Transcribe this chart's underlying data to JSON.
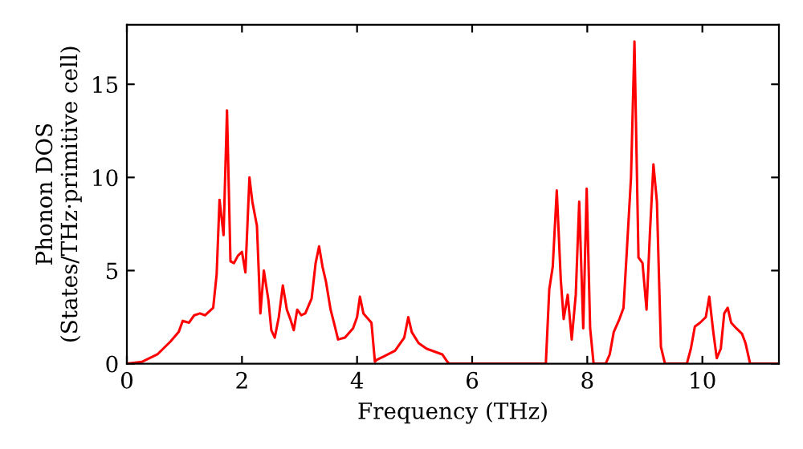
{
  "chart_data": {
    "type": "line",
    "xlabel": "Frequency (THz)",
    "ylabel": "Phonon DOS\n(States/THz·primitive cell)",
    "xlim": [
      0,
      11.33
    ],
    "ylim": [
      0,
      18.2
    ],
    "xticks": [
      0,
      2,
      4,
      6,
      8,
      10
    ],
    "yticks": [
      0,
      5,
      10,
      15
    ],
    "grid": false,
    "marker": "none",
    "line_style": "solid",
    "series": [
      {
        "color": "#ff0000",
        "x": [
          0,
          0.26,
          0.53,
          0.76,
          0.9,
          0.97,
          1.08,
          1.17,
          1.27,
          1.36,
          1.5,
          1.56,
          1.61,
          1.68,
          1.74,
          1.8,
          1.86,
          1.93,
          2.0,
          2.06,
          2.13,
          2.18,
          2.26,
          2.32,
          2.38,
          2.46,
          2.51,
          2.57,
          2.64,
          2.71,
          2.78,
          2.84,
          2.9,
          2.96,
          3.03,
          3.1,
          3.21,
          3.28,
          3.34,
          3.4,
          3.46,
          3.54,
          3.59,
          3.67,
          3.79,
          3.93,
          4.0,
          4.05,
          4.11,
          4.25,
          4.31,
          4.34,
          4.47,
          4.66,
          4.82,
          4.89,
          4.95,
          5.07,
          5.21,
          5.48,
          5.57,
          5.6,
          7.28,
          7.34,
          7.4,
          7.47,
          7.54,
          7.59,
          7.66,
          7.73,
          7.8,
          7.86,
          7.93,
          7.99,
          8.05,
          8.11,
          8.32,
          8.39,
          8.46,
          8.56,
          8.63,
          8.69,
          8.76,
          8.82,
          8.89,
          8.96,
          9.03,
          9.09,
          9.15,
          9.21,
          9.28,
          9.35,
          9.73,
          9.8,
          9.87,
          9.96,
          10.06,
          10.12,
          10.19,
          10.25,
          10.32,
          10.38,
          10.44,
          10.5,
          10.59,
          10.69,
          10.75,
          10.83,
          11.33
        ],
        "values": [
          0,
          0.1,
          0.5,
          1.2,
          1.7,
          2.3,
          2.2,
          2.6,
          2.7,
          2.6,
          3.0,
          4.8,
          8.8,
          6.9,
          13.6,
          5.5,
          5.4,
          5.8,
          6.0,
          4.9,
          10.0,
          8.7,
          7.4,
          2.7,
          5.0,
          3.4,
          1.8,
          1.4,
          2.5,
          4.2,
          2.9,
          2.4,
          1.8,
          2.9,
          2.6,
          2.7,
          3.5,
          5.4,
          6.3,
          5.2,
          4.4,
          2.9,
          2.3,
          1.3,
          1.4,
          1.9,
          2.5,
          3.6,
          2.7,
          2.2,
          0.1,
          0.2,
          0.4,
          0.7,
          1.4,
          2.5,
          1.7,
          1.1,
          0.8,
          0.5,
          0.1,
          0,
          0,
          4.0,
          5.2,
          9.3,
          4.5,
          2.4,
          3.7,
          1.3,
          3.7,
          8.7,
          1.9,
          9.4,
          1.9,
          0,
          0,
          0.5,
          1.7,
          2.4,
          3.0,
          6.2,
          10.0,
          17.3,
          5.7,
          5.4,
          2.9,
          7.1,
          10.7,
          8.7,
          0.9,
          0,
          0,
          0.8,
          2.0,
          2.2,
          2.5,
          3.6,
          1.7,
          0.3,
          0.8,
          2.7,
          3.0,
          2.2,
          1.9,
          1.6,
          1.1,
          0,
          0
        ]
      }
    ]
  }
}
